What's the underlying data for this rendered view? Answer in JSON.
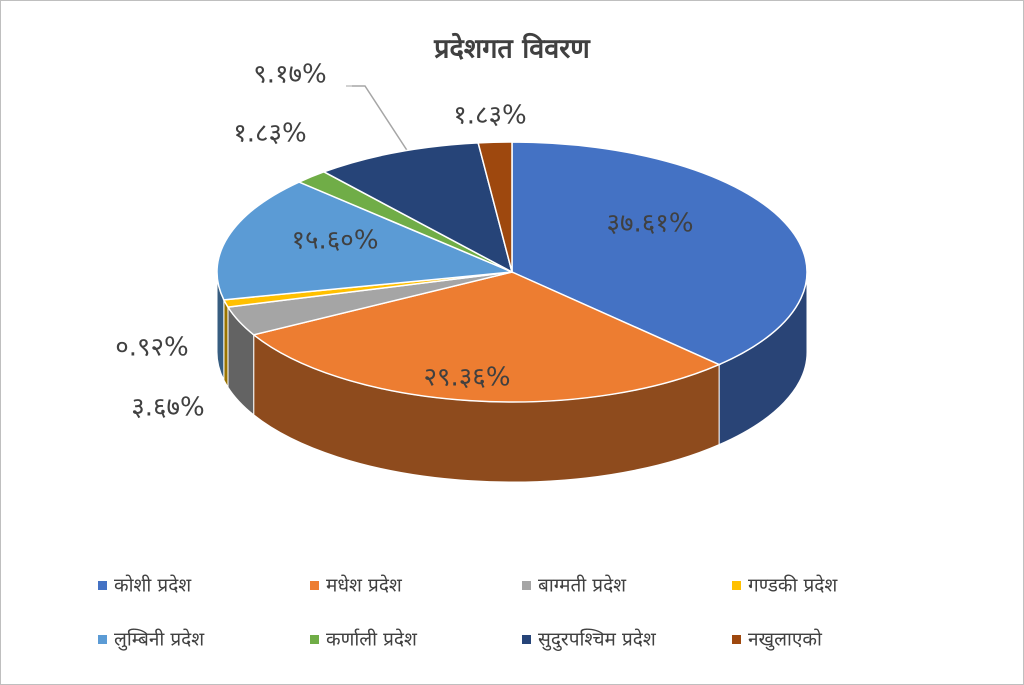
{
  "chart_data": {
    "type": "pie3d",
    "title": "प्रदेशगत विवरण",
    "categories": [
      "कोशी प्रदेश",
      "मधेश प्रदेश",
      "बाग्मती प्रदेश",
      "गण्डकी प्रदेश",
      "लुम्बिनी प्रदेश",
      "कर्णाली प्रदेश",
      "सुदुरपश्चिम प्रदेश",
      "नखुलाएको"
    ],
    "values": [
      37.61,
      29.36,
      3.67,
      0.92,
      15.6,
      1.83,
      9.17,
      1.83
    ],
    "value_labels": [
      "३७.६१%",
      "२९.३६%",
      "३.६७%",
      "०.९२%",
      "१५.६०%",
      "१.८३%",
      "९.१७%",
      "१.८३%"
    ],
    "colors": [
      "#4472c4",
      "#ed7d31",
      "#a5a5a5",
      "#ffc000",
      "#5b9bd5",
      "#70ad47",
      "#264478",
      "#9e480e"
    ],
    "legend": "bottom"
  }
}
